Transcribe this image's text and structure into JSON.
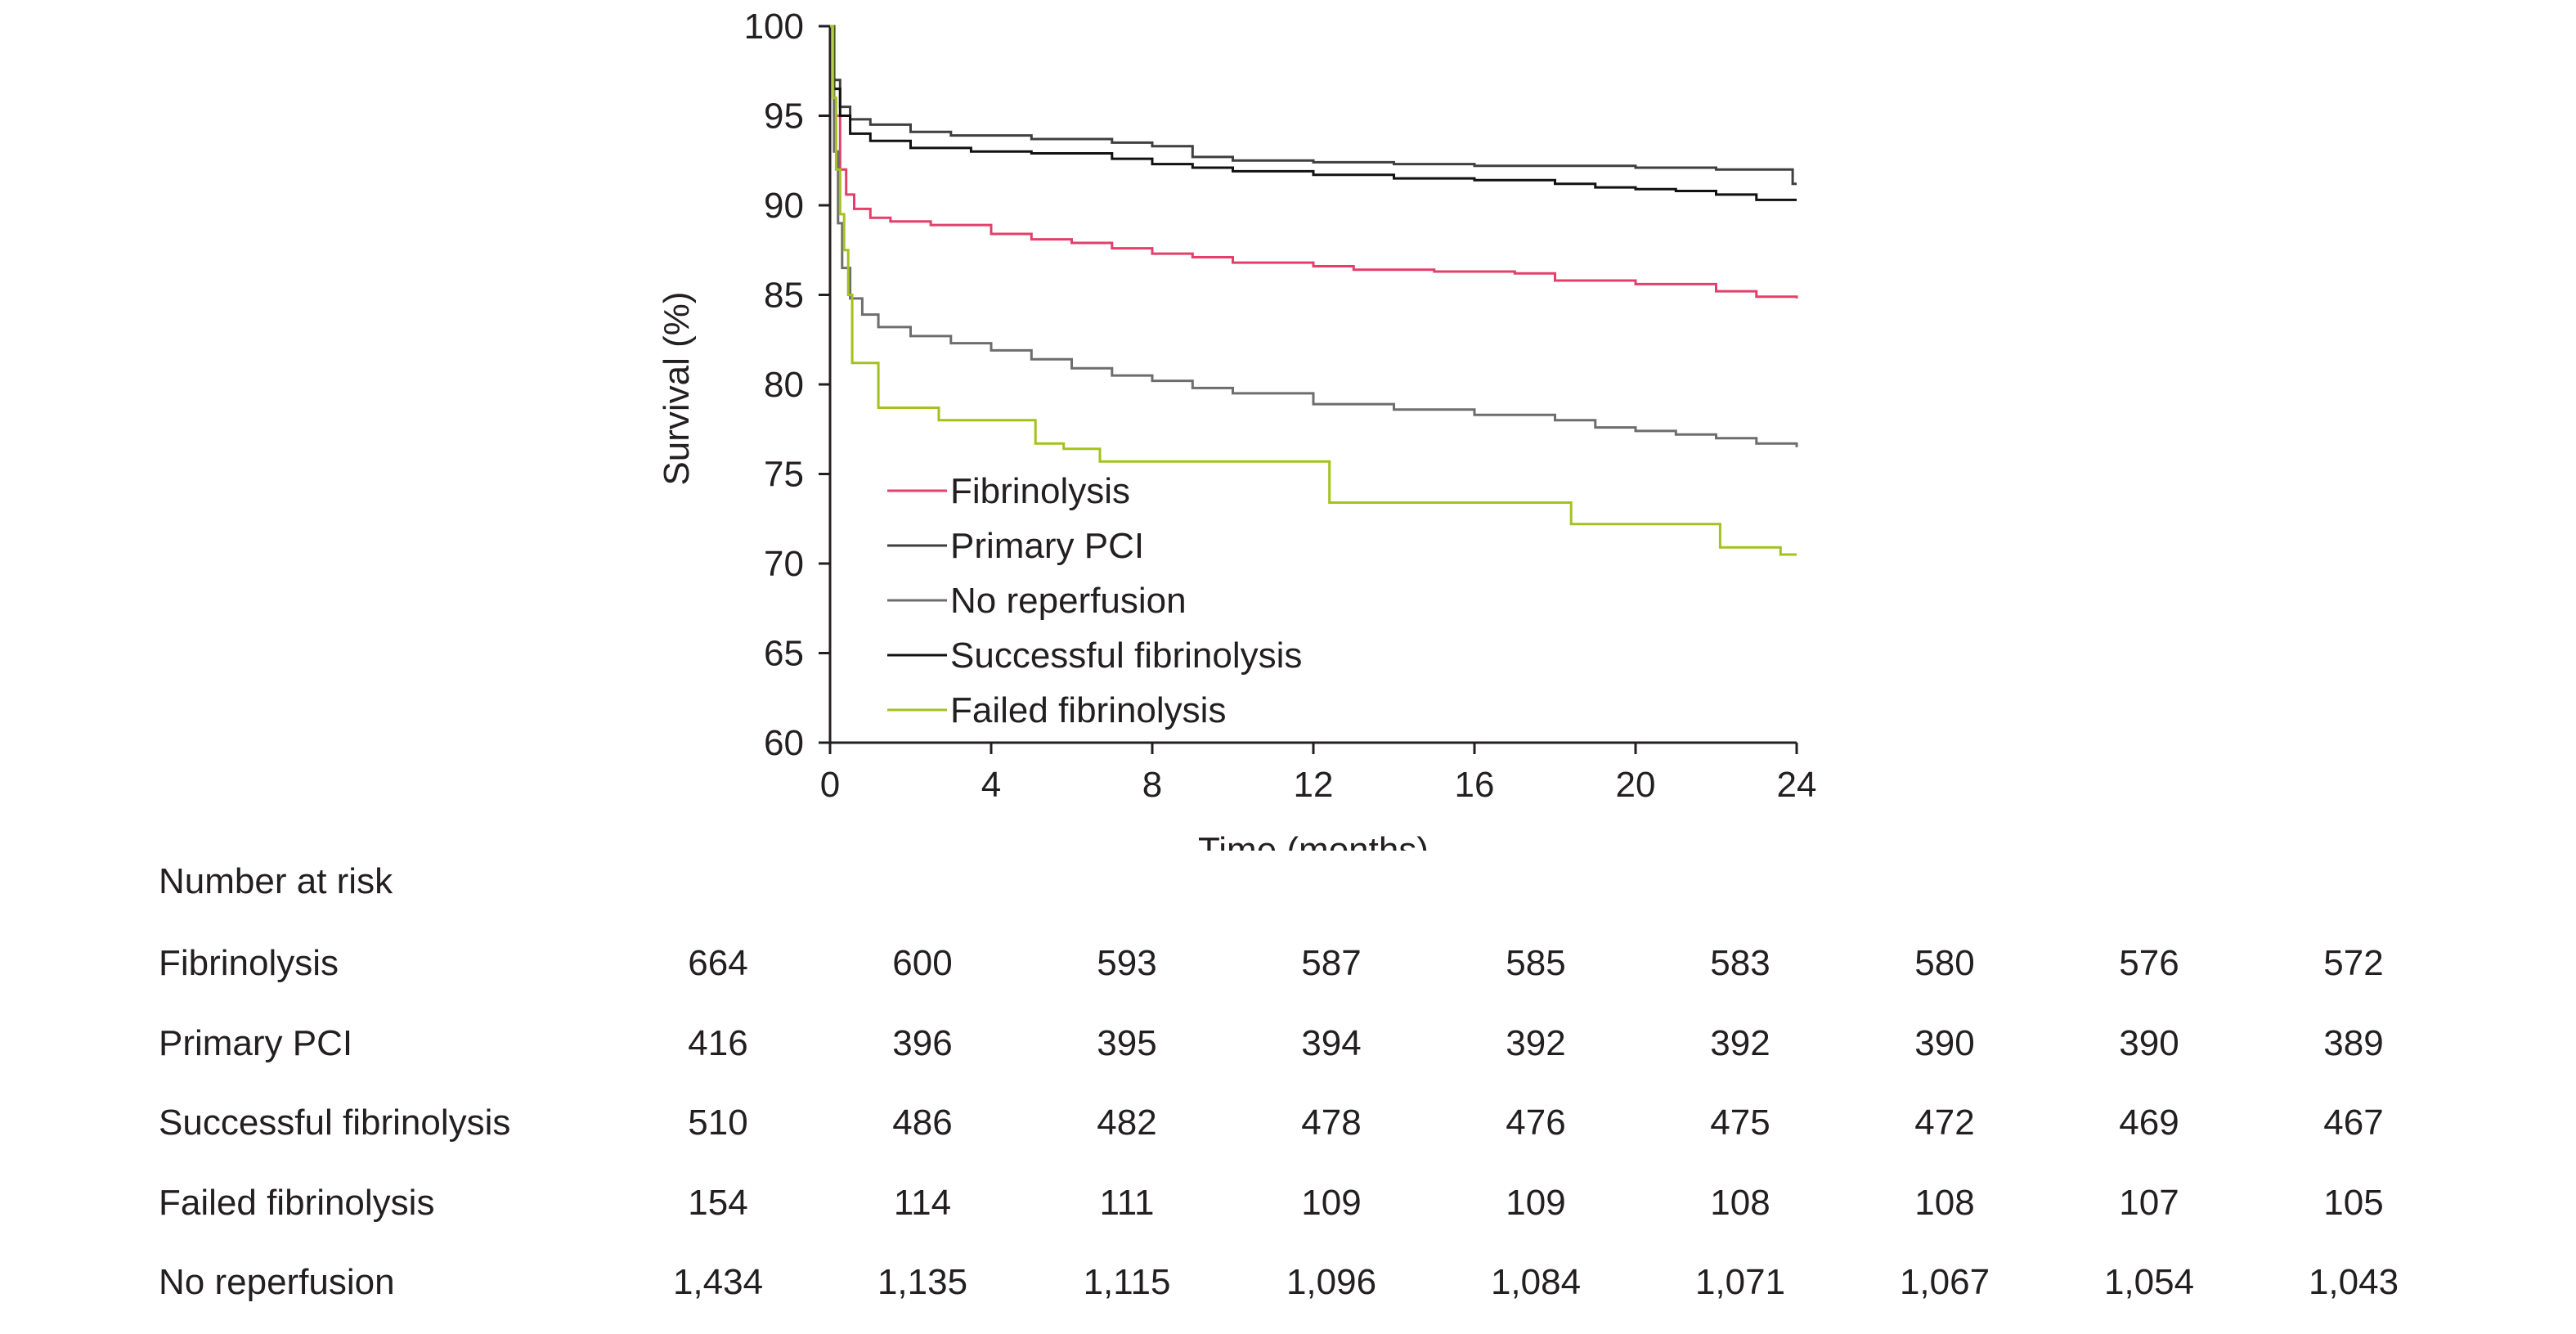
{
  "chart_data": {
    "type": "line",
    "step": true,
    "title": "",
    "xlabel": "Time (months)",
    "ylabel": "Survival (%)",
    "xlim": [
      0,
      24
    ],
    "ylim": [
      60,
      100
    ],
    "x_ticks": [
      "0",
      "4",
      "8",
      "12",
      "16",
      "20",
      "24"
    ],
    "y_ticks": [
      "60",
      "65",
      "70",
      "75",
      "80",
      "85",
      "90",
      "95",
      "100"
    ],
    "grid": false,
    "legend_position": "bottom-left inside plot",
    "series": [
      {
        "name": "Fibrinolysis",
        "color": "#e2406b",
        "x": [
          0,
          0.1,
          0.25,
          0.4,
          0.6,
          1.0,
          1.5,
          2.5,
          4.0,
          5.0,
          6.0,
          7.0,
          8.0,
          9.0,
          10.0,
          12.0,
          13.0,
          15.0,
          17.0,
          18.0,
          20.0,
          22.0,
          23.0,
          24.0
        ],
        "y": [
          100,
          95.0,
          92.0,
          90.6,
          89.8,
          89.3,
          89.1,
          88.9,
          88.4,
          88.1,
          87.9,
          87.6,
          87.3,
          87.1,
          86.8,
          86.6,
          86.4,
          86.3,
          86.2,
          85.8,
          85.6,
          85.2,
          84.9,
          84.8
        ]
      },
      {
        "name": "Primary PCI",
        "color": "#3f3f3f",
        "x": [
          0,
          0.1,
          0.25,
          0.5,
          1.0,
          2.0,
          3.0,
          5.0,
          7.0,
          8.0,
          9.0,
          10.0,
          12.0,
          14.0,
          16.0,
          20.0,
          22.0,
          23.0,
          23.9,
          24.0
        ],
        "y": [
          100,
          97.0,
          95.5,
          94.8,
          94.5,
          94.1,
          93.9,
          93.7,
          93.5,
          93.3,
          92.7,
          92.5,
          92.4,
          92.3,
          92.2,
          92.1,
          92.0,
          92.0,
          91.2,
          91.2
        ]
      },
      {
        "name": "No reperfusion",
        "color": "#6d6d6d",
        "x": [
          0,
          0.1,
          0.2,
          0.3,
          0.5,
          0.8,
          1.2,
          2.0,
          3.0,
          4.0,
          5.0,
          6.0,
          7.0,
          8.0,
          9.0,
          10.0,
          12.0,
          14.0,
          16.0,
          18.0,
          19.0,
          20.0,
          21.0,
          22.0,
          23.0,
          24.0
        ],
        "y": [
          100,
          93.0,
          89.0,
          86.5,
          84.8,
          83.9,
          83.2,
          82.7,
          82.3,
          81.9,
          81.4,
          80.9,
          80.5,
          80.2,
          79.8,
          79.5,
          78.9,
          78.6,
          78.3,
          78.0,
          77.6,
          77.4,
          77.2,
          77.0,
          76.7,
          76.5
        ]
      },
      {
        "name": "Successful fibrinolysis",
        "color": "#111111",
        "x": [
          0,
          0.1,
          0.25,
          0.5,
          1.0,
          2.0,
          3.5,
          5.0,
          7.0,
          8.0,
          9.0,
          10.0,
          12.0,
          14.0,
          16.0,
          18.0,
          19.0,
          20.0,
          21.0,
          22.0,
          23.0,
          24.0
        ],
        "y": [
          100,
          96.5,
          95.0,
          94.0,
          93.6,
          93.2,
          93.0,
          92.9,
          92.6,
          92.3,
          92.1,
          91.9,
          91.7,
          91.5,
          91.4,
          91.2,
          91.0,
          90.9,
          90.8,
          90.6,
          90.3,
          90.3
        ]
      },
      {
        "name": "Failed fibrinolysis",
        "color": "#a3c21f",
        "x": [
          0,
          0.08,
          0.15,
          0.25,
          0.35,
          0.45,
          0.55,
          1.2,
          2.7,
          5.1,
          5.8,
          6.7,
          12.4,
          18.4,
          22.1,
          23.6,
          24.0
        ],
        "y": [
          100,
          96.0,
          92.0,
          89.5,
          87.5,
          85.0,
          81.2,
          78.7,
          78.0,
          76.7,
          76.4,
          75.7,
          73.4,
          72.2,
          70.9,
          70.5,
          70.5
        ]
      }
    ]
  },
  "risk_table": {
    "title": "Number at risk",
    "rows": [
      {
        "label": "Fibrinolysis",
        "values": [
          "664",
          "600",
          "593",
          "587",
          "585",
          "583",
          "580",
          "576",
          "572"
        ]
      },
      {
        "label": "Primary PCI",
        "values": [
          "416",
          "396",
          "395",
          "394",
          "392",
          "392",
          "390",
          "390",
          "389"
        ]
      },
      {
        "label": "Successful fibrinolysis",
        "values": [
          "510",
          "486",
          "482",
          "478",
          "476",
          "475",
          "472",
          "469",
          "467"
        ]
      },
      {
        "label": "Failed fibrinolysis",
        "values": [
          "154",
          "114",
          "111",
          "109",
          "109",
          "108",
          "108",
          "107",
          "105"
        ]
      },
      {
        "label": "No reperfusion",
        "values": [
          "1,434",
          "1,135",
          "1,115",
          "1,096",
          "1,084",
          "1,071",
          "1,067",
          "1,054",
          "1,043"
        ]
      }
    ]
  }
}
